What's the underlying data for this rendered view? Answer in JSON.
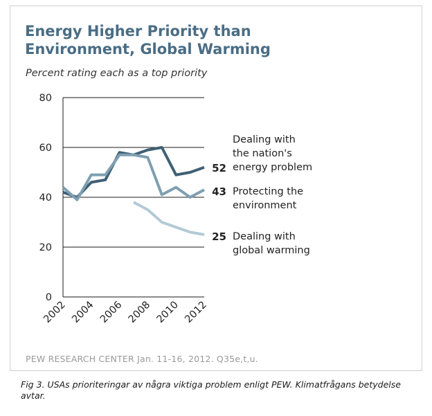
{
  "title_lines": [
    "Energy Higher Priority than",
    "Environment, Global Warming"
  ],
  "subtitle": "Percent rating each as a top priority",
  "source": "PEW RESEARCH CENTER Jan. 11-16, 2012. Q35e,t,u.",
  "caption": "Fig 3. USAs prioriteringar av några viktiga problem enligt PEW. Klimatfrågans betydelse avtar.",
  "chart_data": {
    "type": "line",
    "title": "Energy Higher Priority than Environment, Global Warming",
    "subtitle": "Percent rating each as a top priority",
    "ylim": [
      0,
      80
    ],
    "xlim": [
      2002,
      2012
    ],
    "y_ticks": [
      0,
      20,
      40,
      60,
      80
    ],
    "x_ticks": [
      "2002",
      "2004",
      "2006",
      "2008",
      "2010",
      "2012"
    ],
    "grid": "horizontal",
    "series": [
      {
        "name_lines": [
          "Dealing with",
          "the nation's",
          "energy problem"
        ],
        "end_label": "52",
        "color": "#3f6075",
        "points": [
          [
            2002,
            42
          ],
          [
            2003,
            40
          ],
          [
            2004,
            46
          ],
          [
            2005,
            47
          ],
          [
            2006,
            58
          ],
          [
            2007,
            57
          ],
          [
            2008,
            59
          ],
          [
            2009,
            60
          ],
          [
            2010,
            49
          ],
          [
            2011,
            50
          ],
          [
            2012,
            52
          ]
        ]
      },
      {
        "name_lines": [
          "Protecting the",
          "environment"
        ],
        "end_label": "43",
        "color": "#7f9fb1",
        "points": [
          [
            2002,
            44
          ],
          [
            2003,
            39
          ],
          [
            2004,
            49
          ],
          [
            2005,
            49
          ],
          [
            2006,
            57
          ],
          [
            2007,
            57
          ],
          [
            2008,
            56
          ],
          [
            2009,
            41
          ],
          [
            2010,
            44
          ],
          [
            2011,
            40
          ],
          [
            2012,
            43
          ]
        ]
      },
      {
        "name_lines": [
          "Dealing with",
          "global warming"
        ],
        "end_label": "25",
        "color": "#b3c9d6",
        "points": [
          [
            2007,
            38
          ],
          [
            2008,
            35
          ],
          [
            2009,
            30
          ],
          [
            2010,
            28
          ],
          [
            2011,
            26
          ],
          [
            2012,
            25
          ]
        ]
      }
    ]
  }
}
